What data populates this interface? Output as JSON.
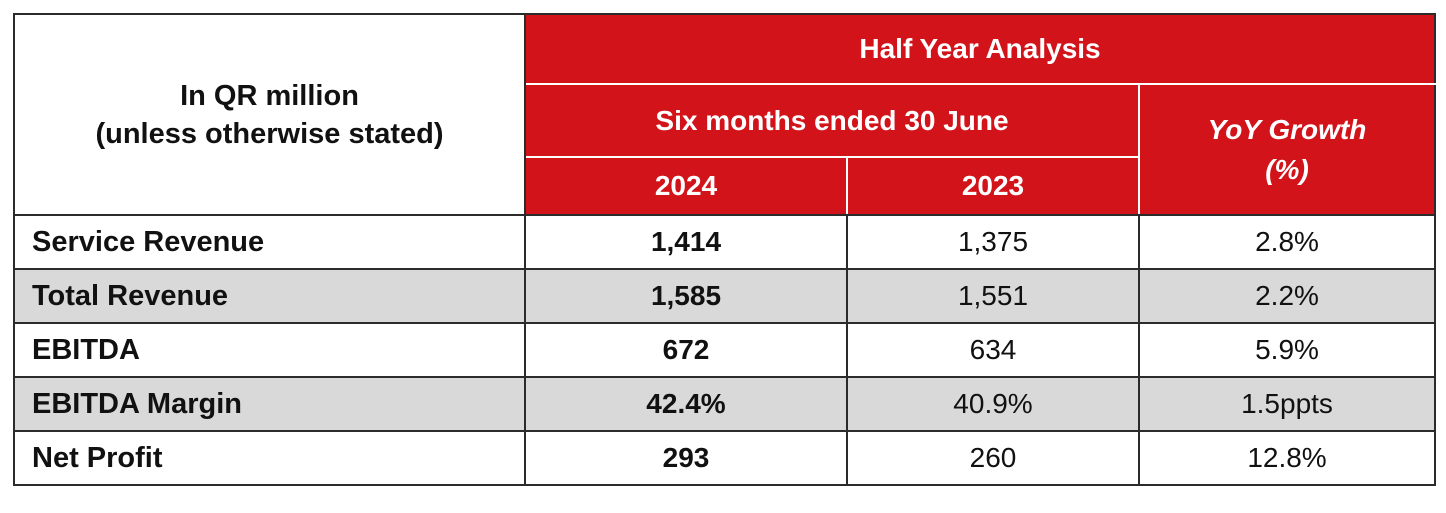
{
  "header": {
    "unit_line1": "In QR million",
    "unit_line2": "(unless otherwise stated)",
    "group_title": "Half Year Analysis",
    "period_title": "Six months ended 30 June",
    "year_current": "2024",
    "year_prior": "2023",
    "growth_line1": "YoY Growth",
    "growth_line2": "(%)"
  },
  "accent_color": "#d2131a",
  "rows": [
    {
      "label": "Service Revenue",
      "current": "1,414",
      "prior": "1,375",
      "growth": "2.8%"
    },
    {
      "label": "Total Revenue",
      "current": "1,585",
      "prior": "1,551",
      "growth": "2.2%"
    },
    {
      "label": "EBITDA",
      "current": "672",
      "prior": "634",
      "growth": "5.9%"
    },
    {
      "label": "EBITDA Margin",
      "current": "42.4%",
      "prior": "40.9%",
      "growth": "1.5ppts"
    },
    {
      "label": "Net Profit",
      "current": "293",
      "prior": "260",
      "growth": "12.8%"
    }
  ]
}
